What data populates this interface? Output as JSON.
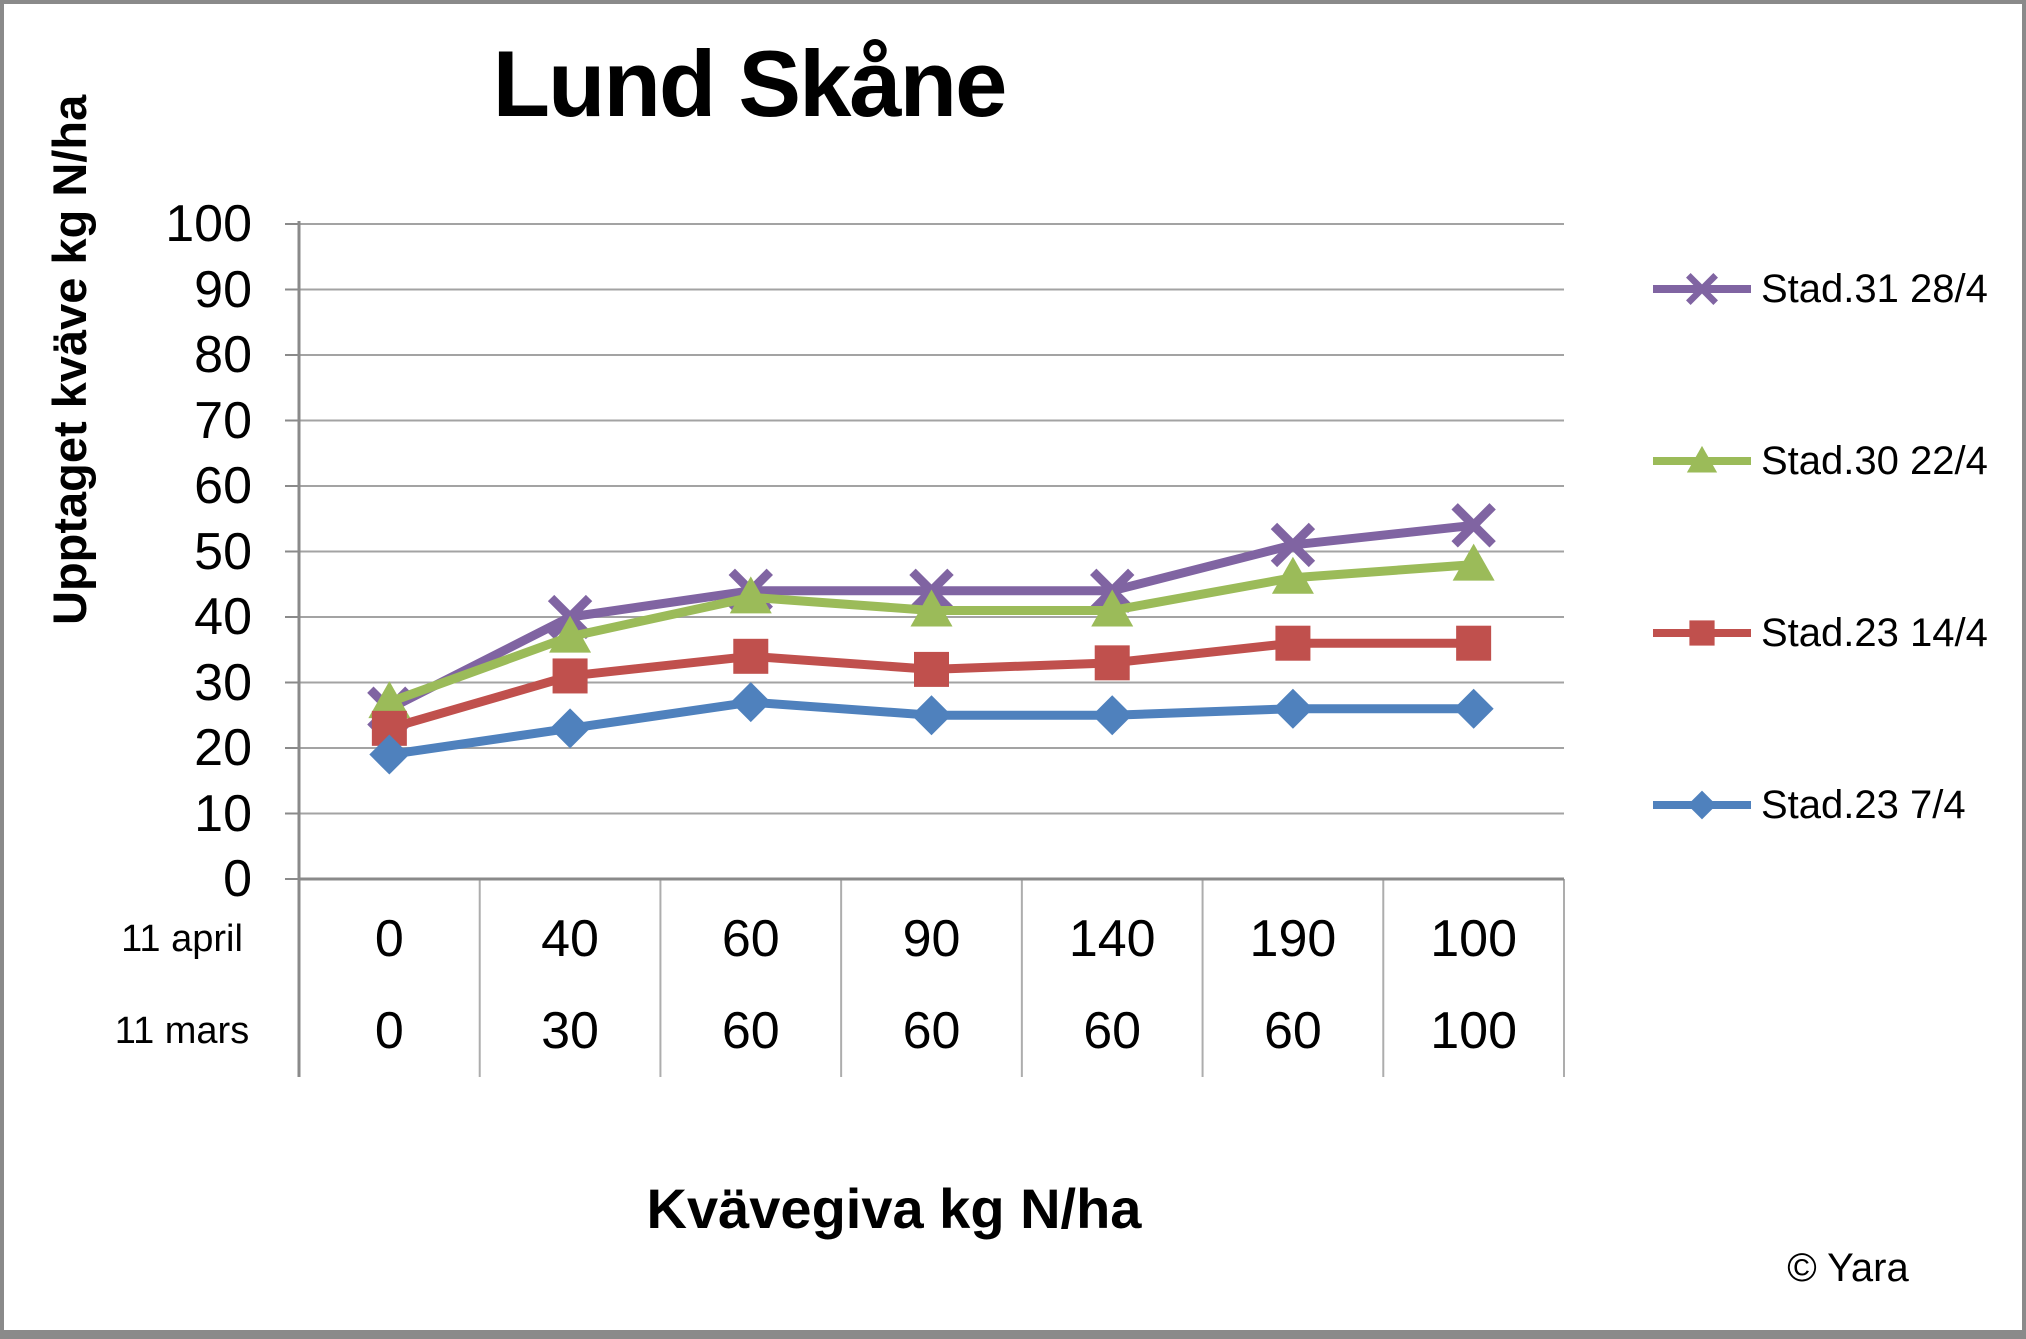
{
  "chart_data": {
    "type": "line",
    "title": "Lund Skåne",
    "ylabel": "Upptaget kväve kg N/ha",
    "xlabel": "Kvävegiva kg N/ha",
    "copyright": "© Yara",
    "ylim": [
      0,
      100
    ],
    "yticks": [
      0,
      10,
      20,
      30,
      40,
      50,
      60,
      70,
      80,
      90,
      100
    ],
    "grid": true,
    "legend_position": "right",
    "x_axis_rows": [
      {
        "label": "11 april",
        "values": [
          "0",
          "40",
          "60",
          "90",
          "140",
          "190",
          "100"
        ]
      },
      {
        "label": "11 mars",
        "values": [
          "0",
          "30",
          "60",
          "60",
          "60",
          "60",
          "100"
        ]
      }
    ],
    "series": [
      {
        "name": "Stad.31 28/4",
        "color": "#8064A2",
        "marker": "x",
        "values": [
          26,
          40,
          44,
          44,
          44,
          51,
          54
        ]
      },
      {
        "name": "Stad.30 22/4",
        "color": "#9BBB59",
        "marker": "triangle",
        "values": [
          27,
          37,
          43,
          41,
          41,
          46,
          48
        ]
      },
      {
        "name": "Stad.23 14/4",
        "color": "#C0504D",
        "marker": "square",
        "values": [
          23,
          31,
          34,
          32,
          33,
          36,
          36
        ]
      },
      {
        "name": "Stad.23 7/4",
        "color": "#4F81BD",
        "marker": "diamond",
        "values": [
          19,
          23,
          27,
          25,
          25,
          26,
          26
        ]
      }
    ],
    "colors": {
      "grid": "#A3A3A3",
      "axis": "#8A8A8A",
      "table_line": "#ADADAD",
      "border": "#8A8A8A"
    }
  }
}
